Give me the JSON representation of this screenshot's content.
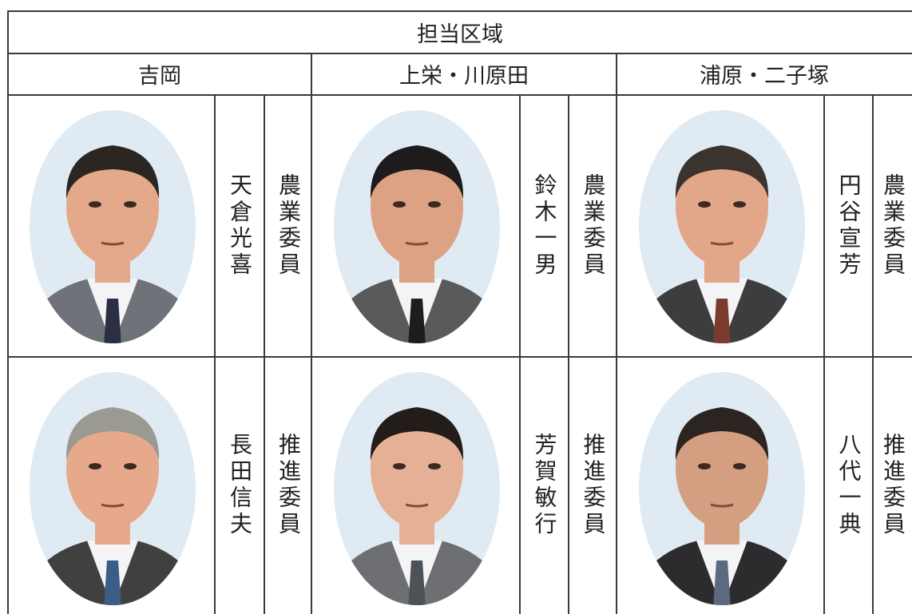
{
  "header": {
    "title": "担当区域"
  },
  "areas": [
    {
      "name": "吉岡",
      "members": [
        {
          "name": "天倉光喜",
          "role": "農業委員"
        },
        {
          "name": "長田信夫",
          "role": "推進委員"
        }
      ]
    },
    {
      "name": "上栄・川原田",
      "members": [
        {
          "name": "鈴木一男",
          "role": "農業委員"
        },
        {
          "name": "芳賀敏行",
          "role": "推進委員"
        }
      ]
    },
    {
      "name": "浦原・二子塚",
      "members": [
        {
          "name": "円谷宣芳",
          "role": "農業委員"
        },
        {
          "name": "八代一典",
          "role": "推進委員"
        }
      ]
    }
  ]
}
